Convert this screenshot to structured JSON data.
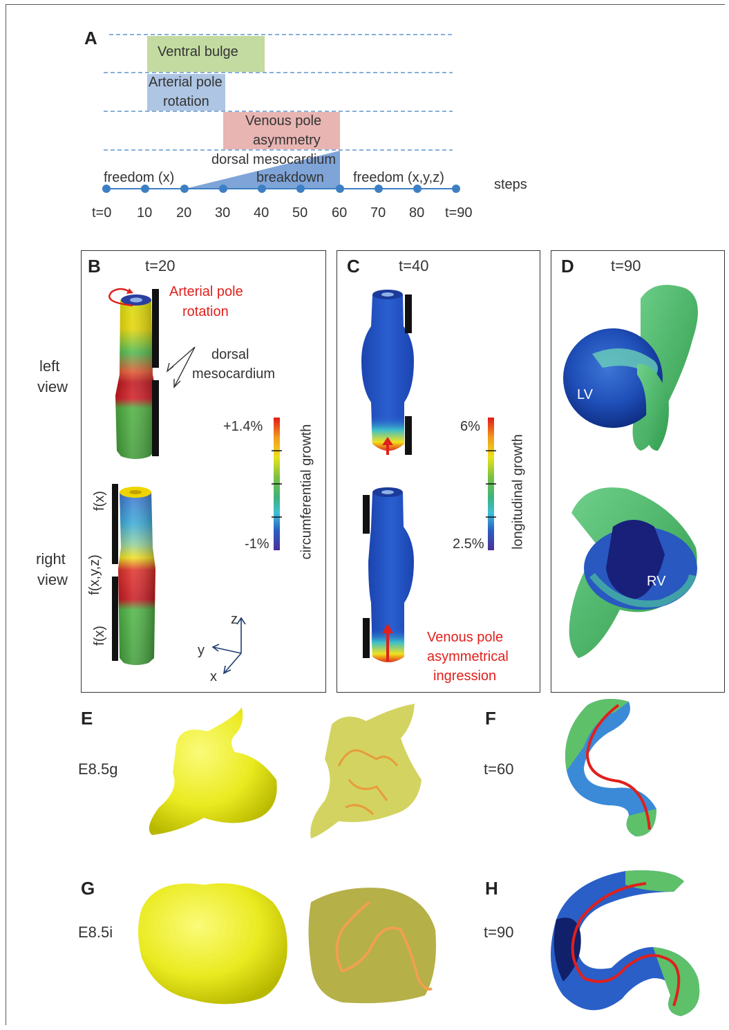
{
  "panelA": {
    "letter": "A",
    "bars": {
      "ventral_bulge": "Ventral bulge",
      "arterial_line1": "Arterial pole",
      "arterial_line2": "rotation",
      "venous_line1": "Venous pole",
      "venous_line2": "asymmetry",
      "dorsal_line1": "dorsal mesocardium",
      "dorsal_line2": "breakdown"
    },
    "freedom_x": "freedom (x)",
    "freedom_xyz": "freedom (x,y,z)",
    "steps_label": "steps",
    "ticks": [
      "t=0",
      "10",
      "20",
      "30",
      "40",
      "50",
      "60",
      "70",
      "80",
      "t=90"
    ],
    "colors": {
      "green": "#c3dba0",
      "blue": "#aec5e3",
      "red": "#e8b5b3",
      "timeline": "#3d7fc4"
    }
  },
  "panelB": {
    "letter": "B",
    "time": "t=20",
    "annotation_red_1": "Arterial pole",
    "annotation_red_2": "rotation",
    "dorsal_1": "dorsal",
    "dorsal_2": "mesocardium",
    "left_view_1": "left",
    "left_view_2": "view",
    "right_view_1": "right",
    "right_view_2": "view",
    "fx_top": "f(x)",
    "fxyz": "f(x,y,z)",
    "fx_bottom": "f(x)",
    "scale_max": "+1.4%",
    "scale_min": "-1%",
    "scale_label": "circumferential  growth",
    "axis_z": "z",
    "axis_y": "y",
    "axis_x": "x"
  },
  "panelC": {
    "letter": "C",
    "time": "t=40",
    "scale_max": "6%",
    "scale_min": "2.5%",
    "scale_label": "longitudinal  growth",
    "venous_1": "Venous pole",
    "venous_2": "asymmetrical",
    "venous_3": "ingression"
  },
  "panelD": {
    "letter": "D",
    "time": "t=90",
    "lv": "LV",
    "rv": "RV"
  },
  "panelE": {
    "letter": "E",
    "label": "E8.5g"
  },
  "panelF": {
    "letter": "F",
    "label": "t=60"
  },
  "panelG": {
    "letter": "G",
    "label": "E8.5i"
  },
  "panelH": {
    "letter": "H",
    "label": "t=90"
  }
}
